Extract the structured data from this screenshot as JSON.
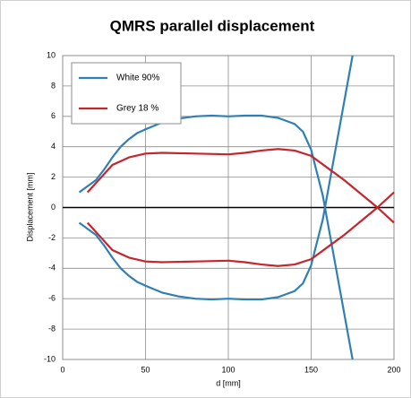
{
  "chart_data": {
    "type": "line",
    "title": "QMRS parallel displacement",
    "x_label": "d [mm]",
    "y_label": "Displacement [mm]",
    "xlim": [
      0,
      200
    ],
    "xticks": [
      0,
      50,
      100,
      150,
      200
    ],
    "ylim": [
      -10,
      10
    ],
    "yticks": [
      -10,
      -8,
      -6,
      -4,
      -2,
      0,
      2,
      4,
      6,
      8,
      10
    ],
    "grid": true,
    "legend": "upper left",
    "series": [
      {
        "name": "White 90%",
        "color": "#2f7fb5",
        "x": [
          10,
          15,
          20,
          25,
          30,
          35,
          40,
          45,
          50,
          60,
          70,
          80,
          90,
          100,
          110,
          120,
          130,
          140,
          145,
          150,
          153,
          157,
          175,
          null,
          10,
          15,
          20,
          25,
          30,
          35,
          40,
          45,
          50,
          60,
          70,
          80,
          90,
          100,
          110,
          120,
          130,
          140,
          145,
          150,
          153,
          157,
          175
        ],
        "values": [
          1,
          1.4,
          1.8,
          2.5,
          3.3,
          4.0,
          4.5,
          4.9,
          5.15,
          5.6,
          5.85,
          6.0,
          6.05,
          6.0,
          6.05,
          6.05,
          5.9,
          5.5,
          5.0,
          3.8,
          2.5,
          0.8,
          -10,
          null,
          -1,
          -1.4,
          -1.8,
          -2.5,
          -3.3,
          -4.0,
          -4.5,
          -4.9,
          -5.15,
          -5.6,
          -5.85,
          -6.0,
          -6.05,
          -6.0,
          -6.05,
          -6.05,
          -5.9,
          -5.5,
          -5.0,
          -3.8,
          -2.5,
          -0.8,
          10
        ]
      },
      {
        "name": "Grey  18 %",
        "color": "#c4262e",
        "x": [
          15,
          20,
          25,
          30,
          40,
          50,
          60,
          80,
          100,
          110,
          120,
          130,
          140,
          150,
          160,
          170,
          180,
          190,
          200,
          null,
          15,
          20,
          25,
          30,
          40,
          50,
          60,
          80,
          100,
          110,
          120,
          130,
          140,
          150,
          160,
          170,
          180,
          190,
          200
        ],
        "values": [
          1,
          1.6,
          2.2,
          2.8,
          3.3,
          3.55,
          3.6,
          3.55,
          3.5,
          3.6,
          3.75,
          3.85,
          3.75,
          3.4,
          2.6,
          1.8,
          0.9,
          0,
          -1,
          null,
          -1,
          -1.6,
          -2.2,
          -2.8,
          -3.3,
          -3.55,
          -3.6,
          -3.55,
          -3.5,
          -3.6,
          -3.75,
          -3.85,
          -3.75,
          -3.4,
          -2.6,
          -1.8,
          -0.9,
          0,
          1
        ]
      }
    ]
  }
}
